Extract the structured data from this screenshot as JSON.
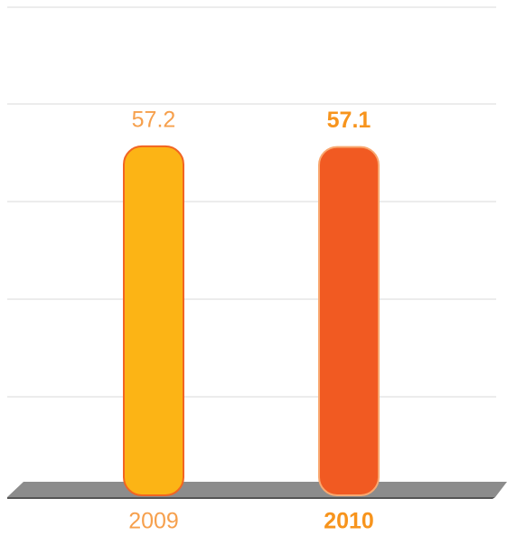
{
  "chart_data": {
    "type": "bar",
    "categories": [
      "2009",
      "2010"
    ],
    "values": [
      57.2,
      57.1
    ],
    "colors": [
      "#fcb415",
      "#f15a22"
    ],
    "ylim": [
      0,
      80
    ]
  }
}
